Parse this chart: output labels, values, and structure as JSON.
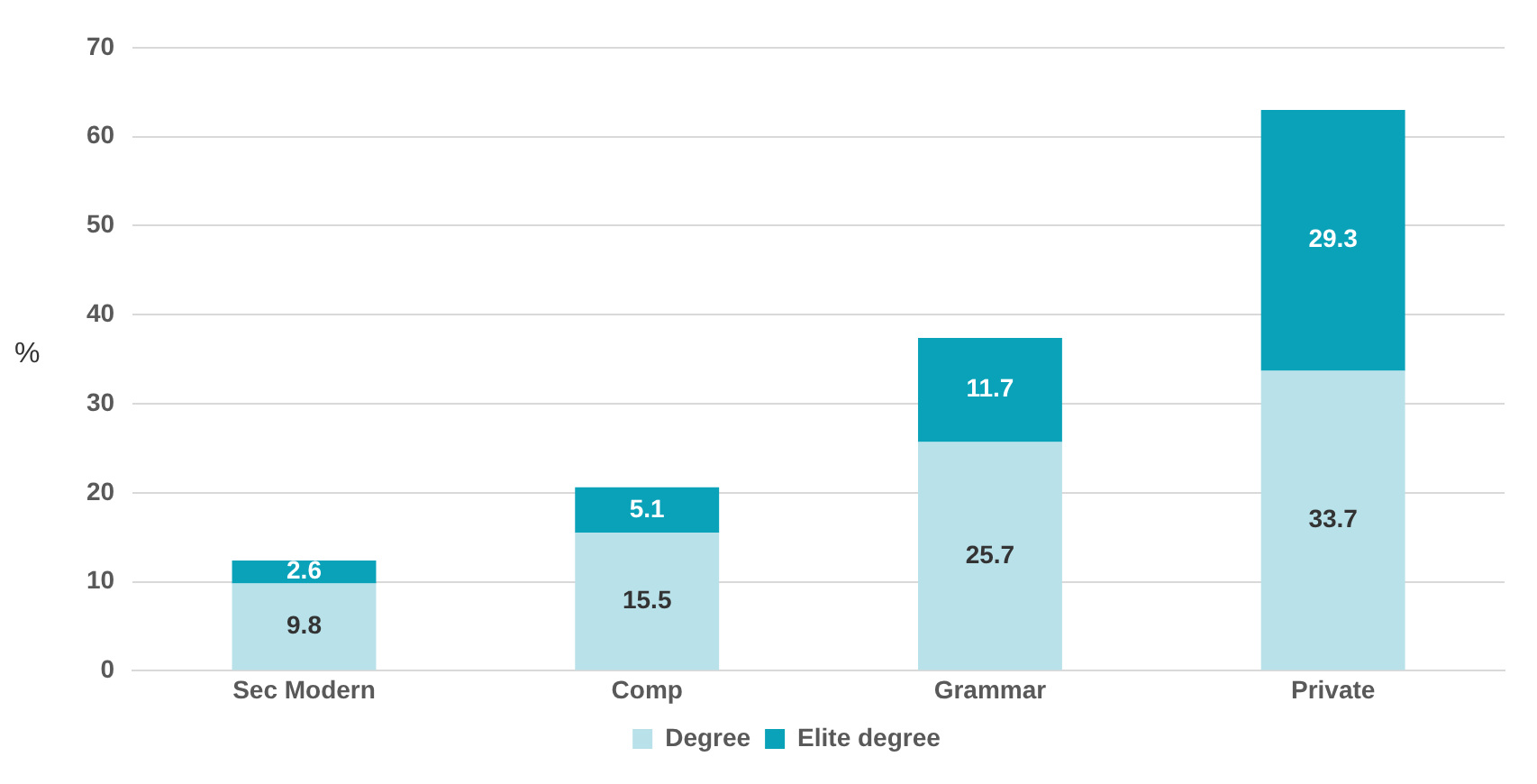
{
  "chart_data": {
    "type": "bar",
    "ylabel": "%",
    "categories": [
      "Sec Modern",
      "Comp",
      "Grammar",
      "Private"
    ],
    "series": [
      {
        "name": "Degree",
        "color": "#b9e1e9",
        "values": [
          9.8,
          15.5,
          25.7,
          33.7
        ]
      },
      {
        "name": "Elite degree",
        "color": "#0aa2b9",
        "values": [
          2.6,
          5.1,
          11.7,
          29.3
        ]
      }
    ],
    "stacked": true,
    "ylim": [
      0,
      70
    ],
    "yticks": [
      0,
      10,
      20,
      30,
      40,
      50,
      60,
      70
    ],
    "grid": "y",
    "legend": "bottom",
    "data_labels": true
  }
}
